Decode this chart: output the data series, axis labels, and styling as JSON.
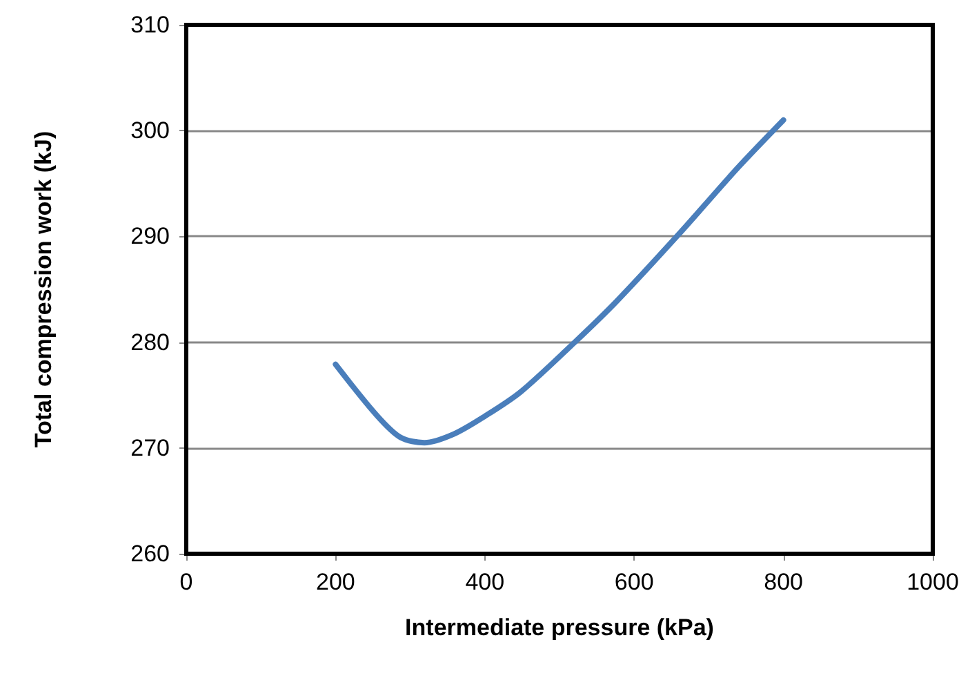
{
  "chart_data": {
    "type": "line",
    "xlabel": "Intermediate pressure (kPa)",
    "ylabel": "Total compression work (kJ)",
    "series": [
      {
        "color": "#4a7ebb",
        "x": [
          200,
          255,
          287,
          319,
          358,
          400,
          448,
          519,
          577,
          661,
          739,
          800
        ],
        "values": [
          277.9,
          273.1,
          271.0,
          270.5,
          271.3,
          273.0,
          275.3,
          279.9,
          283.9,
          290.3,
          296.5,
          301.0
        ]
      }
    ],
    "xlim": [
      0,
      1000
    ],
    "xticks": [
      0,
      200,
      400,
      600,
      800,
      1000
    ],
    "ylim": [
      260,
      310
    ],
    "yticks": [
      260,
      270,
      280,
      290,
      300,
      310
    ],
    "grid": "y",
    "marker": "none",
    "line_style": "solid"
  }
}
